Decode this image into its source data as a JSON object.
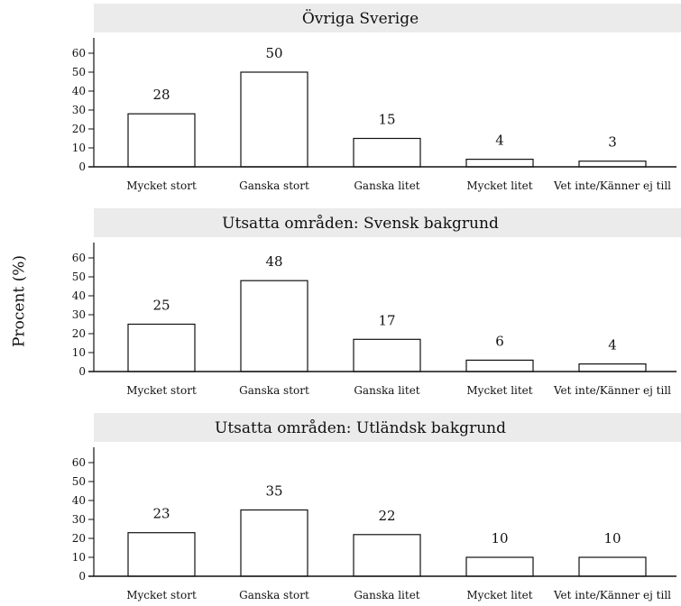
{
  "ylabel": "Procent (%)",
  "chart_data": [
    {
      "type": "bar",
      "title": "Övriga Sverige",
      "categories": [
        "Mycket stort",
        "Ganska stort",
        "Ganska litet",
        "Mycket litet",
        "Vet inte/Känner ej till"
      ],
      "values": [
        28,
        50,
        15,
        4,
        3
      ],
      "ylim": [
        0,
        70
      ],
      "yticks": [
        0,
        10,
        20,
        30,
        40,
        50,
        60
      ],
      "ylabel": "Procent (%)",
      "grid": false
    },
    {
      "type": "bar",
      "title": "Utsatta områden: Svensk bakgrund",
      "categories": [
        "Mycket stort",
        "Ganska stort",
        "Ganska litet",
        "Mycket litet",
        "Vet inte/Känner ej till"
      ],
      "values": [
        25,
        48,
        17,
        6,
        4
      ],
      "ylim": [
        0,
        70
      ],
      "yticks": [
        0,
        10,
        20,
        30,
        40,
        50,
        60
      ],
      "ylabel": "Procent (%)",
      "grid": false
    },
    {
      "type": "bar",
      "title": "Utsatta områden: Utländsk bakgrund",
      "categories": [
        "Mycket stort",
        "Ganska stort",
        "Ganska litet",
        "Mycket litet",
        "Vet inte/Känner ej till"
      ],
      "values": [
        23,
        35,
        22,
        10,
        10
      ],
      "ylim": [
        0,
        70
      ],
      "yticks": [
        0,
        10,
        20,
        30,
        40,
        50,
        60
      ],
      "ylabel": "Procent (%)",
      "grid": false
    }
  ],
  "colors": {
    "title_strip": "#ebebeb",
    "bar_fill": "#ffffff",
    "bar_stroke": "#111111",
    "axis": "#111111"
  }
}
